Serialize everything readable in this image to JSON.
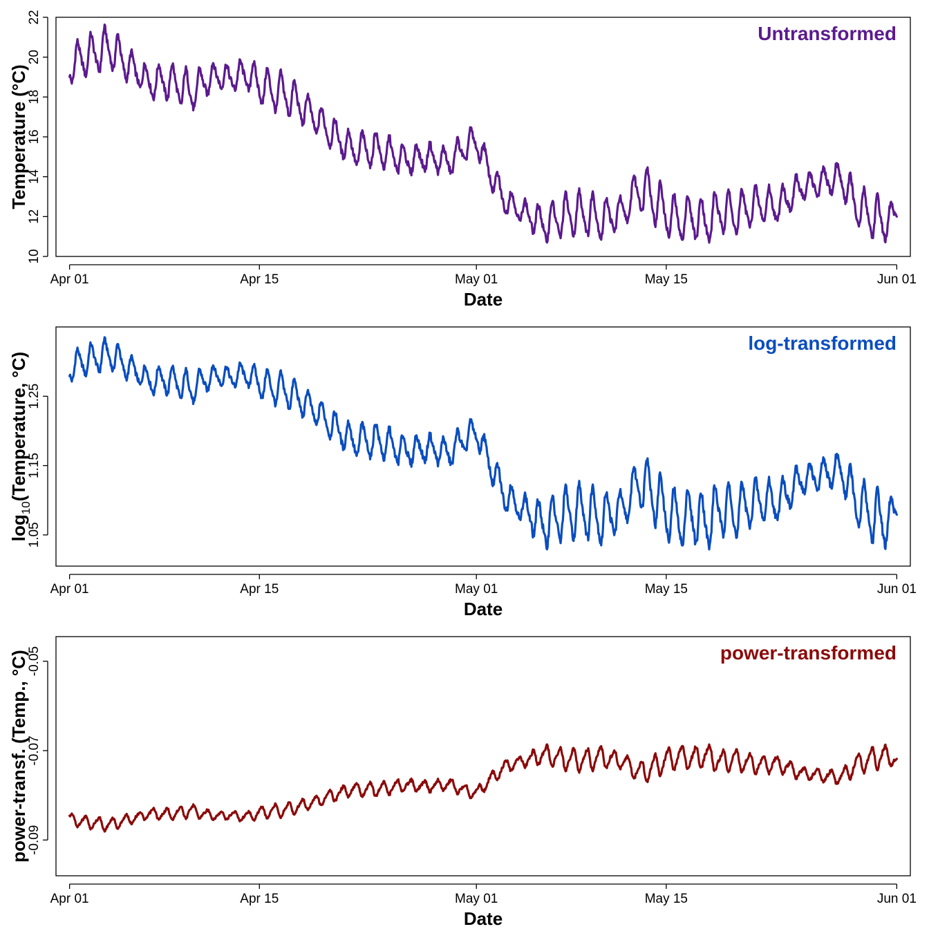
{
  "chart_data": [
    {
      "type": "line",
      "panel_label": "Untransformed",
      "ylabel": "Temperature (°C)",
      "xlabel": "Date",
      "color": "#5B1A8E",
      "ylim": [
        10,
        22
      ],
      "yticks": [
        10,
        12,
        14,
        16,
        18,
        20,
        22
      ],
      "ytick_labels": [
        "10",
        "12",
        "14",
        "16",
        "18",
        "20",
        "22"
      ],
      "xlim": [
        "2023-03-31",
        "2023-06-02"
      ],
      "xticks": [
        "2023-04-01",
        "2023-04-15",
        "2023-05-01",
        "2023-05-15",
        "2023-06-01"
      ],
      "xtick_labels": [
        "Apr 01",
        "Apr 15",
        "May 01",
        "May 15",
        "Jun 01"
      ],
      "grid": false,
      "series": [
        {
          "x": [
            "2023-04-01",
            "2023-04-02",
            "2023-04-03",
            "2023-04-04",
            "2023-04-05",
            "2023-04-06",
            "2023-04-07",
            "2023-04-08",
            "2023-04-09",
            "2023-04-10",
            "2023-04-11",
            "2023-04-12",
            "2023-04-13",
            "2023-04-14",
            "2023-04-15",
            "2023-04-16",
            "2023-04-17",
            "2023-04-18",
            "2023-04-19",
            "2023-04-20",
            "2023-04-21",
            "2023-04-22",
            "2023-04-23",
            "2023-04-24",
            "2023-04-25",
            "2023-04-26",
            "2023-04-27",
            "2023-04-28",
            "2023-04-29",
            "2023-04-30",
            "2023-05-01",
            "2023-05-02",
            "2023-05-03",
            "2023-05-04",
            "2023-05-05",
            "2023-05-06",
            "2023-05-07",
            "2023-05-08",
            "2023-05-09",
            "2023-05-10",
            "2023-05-11",
            "2023-05-12",
            "2023-05-13",
            "2023-05-14",
            "2023-05-15",
            "2023-05-16",
            "2023-05-17",
            "2023-05-18",
            "2023-05-19",
            "2023-05-20",
            "2023-05-21",
            "2023-05-22",
            "2023-05-23",
            "2023-05-24",
            "2023-05-25",
            "2023-05-26",
            "2023-05-27",
            "2023-05-28",
            "2023-05-29",
            "2023-05-30",
            "2023-05-31",
            "2023-06-01"
          ],
          "mean": [
            19.5,
            20.0,
            20.2,
            20.5,
            19.8,
            19.2,
            18.7,
            18.8,
            18.6,
            18.2,
            18.8,
            19.1,
            18.9,
            19.2,
            18.6,
            18.3,
            18.1,
            17.6,
            17.0,
            16.4,
            15.8,
            15.3,
            15.4,
            15.3,
            15.0,
            14.8,
            15.0,
            14.9,
            14.7,
            15.4,
            15.8,
            14.2,
            12.9,
            12.4,
            12.0,
            11.6,
            11.9,
            12.1,
            12.2,
            11.9,
            12.0,
            12.3,
            13.5,
            13.0,
            12.1,
            11.8,
            12.0,
            11.7,
            12.3,
            12.1,
            12.4,
            12.6,
            12.5,
            12.9,
            13.5,
            13.6,
            13.8,
            13.9,
            12.5,
            12.1,
            11.7,
            12.1
          ],
          "amplitude": [
            0.8,
            0.9,
            0.9,
            1.0,
            0.8,
            0.6,
            0.7,
            0.8,
            0.9,
            0.9,
            0.7,
            0.6,
            0.5,
            0.7,
            0.8,
            0.9,
            0.9,
            0.8,
            0.7,
            0.7,
            0.7,
            0.7,
            0.8,
            0.8,
            0.7,
            0.6,
            0.6,
            0.6,
            0.6,
            0.7,
            0.6,
            0.6,
            0.6,
            0.5,
            0.6,
            0.8,
            0.9,
            1.0,
            1.0,
            1.0,
            0.8,
            0.6,
            1.1,
            1.2,
            1.0,
            1.0,
            1.0,
            1.0,
            1.0,
            1.0,
            0.9,
            0.8,
            0.8,
            0.7,
            0.6,
            0.6,
            0.6,
            0.8,
            0.9,
            1.0,
            1.0,
            0.4
          ]
        }
      ]
    },
    {
      "type": "line",
      "panel_label": "log-transformed",
      "ylabel": "log10(Temperature, °C)",
      "ylabel_parts": {
        "main": "log",
        "sub": "10",
        "rest": "(Temperature, °C)"
      },
      "xlabel": "Date",
      "color": "#0A4DBF",
      "transform": "log10",
      "ylim": [
        1.005,
        1.35
      ],
      "yticks": [
        1.05,
        1.15,
        1.25
      ],
      "ytick_labels": [
        "1.05",
        "1.15",
        "1.25"
      ],
      "xlim": [
        "2023-03-31",
        "2023-06-02"
      ],
      "xticks": [
        "2023-04-01",
        "2023-04-15",
        "2023-05-01",
        "2023-05-15",
        "2023-06-01"
      ],
      "xtick_labels": [
        "Apr 01",
        "Apr 15",
        "May 01",
        "May 15",
        "Jun 01"
      ],
      "grid": false
    },
    {
      "type": "line",
      "panel_label": "power-transformed",
      "ylabel": "power-transf. (Temp., °C)",
      "xlabel": "Date",
      "color": "#8B0A0A",
      "transform": "power",
      "transform_exponent": -0.03,
      "ylim": [
        -0.098,
        -0.0445
      ],
      "yticks": [
        -0.09,
        -0.07,
        -0.05
      ],
      "ytick_labels": [
        "-0.09",
        "-0.07",
        "-0.05"
      ],
      "xlim": [
        "2023-03-31",
        "2023-06-02"
      ],
      "xticks": [
        "2023-04-01",
        "2023-04-15",
        "2023-05-01",
        "2023-05-15",
        "2023-06-01"
      ],
      "xtick_labels": [
        "Apr 01",
        "Apr 15",
        "May 01",
        "May 15",
        "Jun 01"
      ],
      "grid": false
    }
  ]
}
